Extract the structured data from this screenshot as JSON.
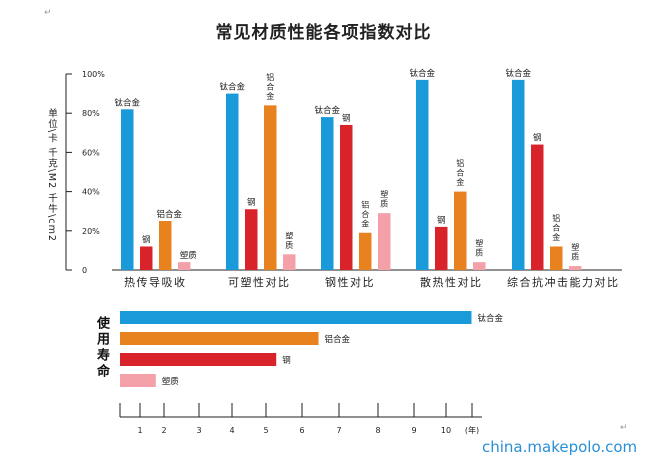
{
  "marks": {
    "top_left": "↵",
    "bottom_right": "↵"
  },
  "watermark": "china.makepolo.com",
  "chart_data": [
    {
      "type": "bar",
      "title": "常见材质性能各项指数对比",
      "ylabel": "单位\\卡 千克\\M2 千牛\\cm2",
      "ylim": [
        0,
        100
      ],
      "yticks": [
        "0",
        "20%",
        "40%",
        "60%",
        "80%",
        "100%"
      ],
      "categories": [
        "热传导吸收",
        "可塑性对比",
        "钢性对比",
        "散热性对比",
        "综合抗冲击能力对比"
      ],
      "series": [
        {
          "name": "钛合金",
          "color": "#1a9ad9",
          "values": [
            82,
            90,
            78,
            97,
            97
          ]
        },
        {
          "name": "钢",
          "color": "#d9232a",
          "values": [
            12,
            31,
            74,
            22,
            64
          ]
        },
        {
          "name": "铝合金",
          "color": "#e8821e",
          "values": [
            25,
            84,
            19,
            40,
            12
          ]
        },
        {
          "name": "塑质",
          "color": "#f4a0a8",
          "values": [
            4,
            8,
            29,
            4,
            2
          ]
        }
      ],
      "bar_labels": [
        [
          "钛合金",
          "钢",
          "铝合金",
          "塑质"
        ],
        [
          "钛合金",
          "钢",
          "铝合金",
          "塑质"
        ],
        [
          "钛合金",
          "钢",
          "铝合金",
          "塑质"
        ],
        [
          "钛合金",
          "钢",
          "铝合金",
          "塑质"
        ],
        [
          "钛合金",
          "钢",
          "铝合金",
          "塑质"
        ]
      ]
    },
    {
      "type": "bar",
      "orientation": "horizontal",
      "ylabel": "使用寿命",
      "xlim": [
        0,
        11
      ],
      "xticks": [
        "1",
        "2",
        "3",
        "4",
        "5",
        "6",
        "7",
        "8",
        "9",
        "10",
        "(年)"
      ],
      "categories": [
        "钛合金",
        "铝合金",
        "钢",
        "塑质"
      ],
      "colors": [
        "#1a9ad9",
        "#e8821e",
        "#d9232a",
        "#f4a0a8"
      ],
      "values": [
        10.8,
        6.1,
        4.8,
        1.1
      ]
    }
  ]
}
